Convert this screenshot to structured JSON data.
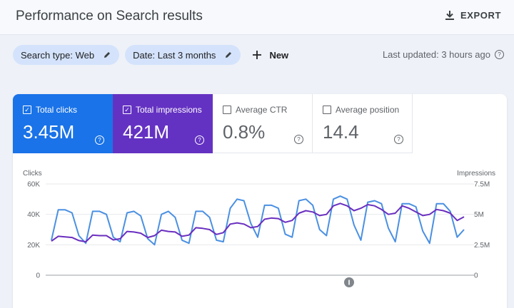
{
  "header": {
    "title": "Performance on Search results",
    "export_label": "EXPORT",
    "export_icon": "download-icon"
  },
  "filters": {
    "search_type": "Search type: Web",
    "date": "Date: Last 3 months",
    "new_label": "New"
  },
  "status": {
    "last_updated": "Last updated: 3 hours ago"
  },
  "metrics": [
    {
      "label": "Total clicks",
      "value": "3.45M",
      "checked": true,
      "color": "#1a73e8"
    },
    {
      "label": "Total impressions",
      "value": "421M",
      "checked": true,
      "color": "#6432c2"
    },
    {
      "label": "Average CTR",
      "value": "0.8%",
      "checked": false
    },
    {
      "label": "Average position",
      "value": "14.4",
      "checked": false
    }
  ],
  "chart_data": {
    "type": "line",
    "left_axis": {
      "label": "Clicks",
      "ticks": [
        "60K",
        "40K",
        "20K",
        "0"
      ],
      "range": [
        0,
        60000
      ]
    },
    "right_axis": {
      "label": "Impressions",
      "ticks": [
        "7.5M",
        "5M",
        "2.5M",
        "0"
      ],
      "range": [
        0,
        7500000
      ]
    },
    "grid": true,
    "series": [
      {
        "axis": "left",
        "color": "#4a90e2",
        "values": [
          23000,
          43000,
          43000,
          41000,
          26000,
          21000,
          42000,
          42000,
          40000,
          25000,
          22000,
          41000,
          42000,
          39000,
          24000,
          20000,
          40000,
          42000,
          38000,
          23000,
          21000,
          42000,
          42000,
          38000,
          23000,
          22000,
          44000,
          50000,
          49000,
          34000,
          25000,
          46000,
          46000,
          44000,
          27000,
          25000,
          49000,
          50000,
          46000,
          30000,
          26000,
          50000,
          52000,
          50000,
          33000,
          23000,
          48000,
          49000,
          47000,
          31000,
          22000,
          47000,
          47000,
          45000,
          29000,
          21000,
          47000,
          47000,
          42000,
          25000,
          30000
        ]
      },
      {
        "axis": "right",
        "color": "#6a2fbf",
        "values": [
          2800000,
          3200000,
          3150000,
          3100000,
          2850000,
          2750000,
          3300000,
          3250000,
          3250000,
          2900000,
          3000000,
          3600000,
          3550000,
          3450000,
          3100000,
          3250000,
          3700000,
          3600000,
          3550000,
          3200000,
          3300000,
          3900000,
          3850000,
          3750000,
          3350000,
          3500000,
          4200000,
          4300000,
          4200000,
          3900000,
          4000000,
          4600000,
          4700000,
          4650000,
          4350000,
          4500000,
          5100000,
          5300000,
          5200000,
          4900000,
          5000000,
          5700000,
          5900000,
          5700000,
          5300000,
          5500000,
          5800000,
          5700000,
          5400000,
          5000000,
          5100000,
          5700000,
          5500000,
          5200000,
          4900000,
          5000000,
          5400000,
          5300000,
          5100000,
          4500000,
          4800000
        ]
      }
    ]
  }
}
